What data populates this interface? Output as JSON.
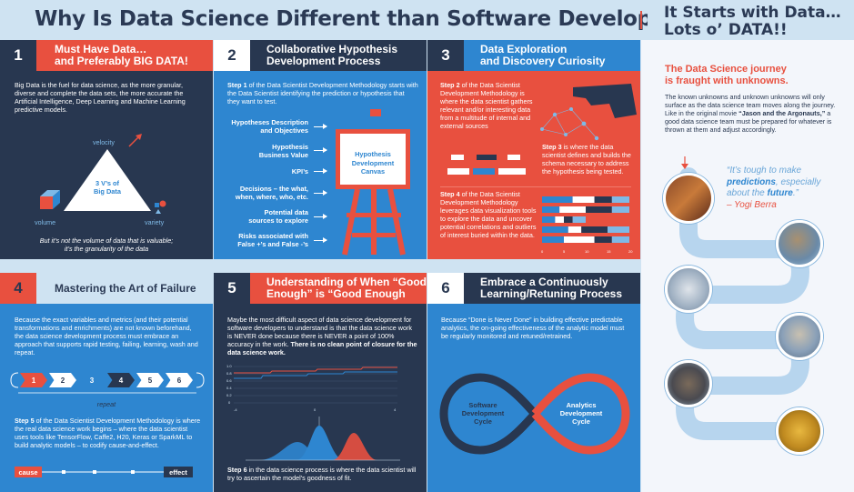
{
  "title": "Why Is Data Science Different than Software Development?",
  "right_title": [
    "It Starts with Data…",
    "Lots o’ DATA!!"
  ],
  "colors": {
    "navy": "#283750",
    "blue": "#2e86d0",
    "red": "#e8503f",
    "light": "#cfe3f2"
  },
  "p1": {
    "num": "1",
    "heading": [
      "Must Have Data…",
      "and Preferably BIG DATA!"
    ],
    "body": "Big Data is the fuel for data science, as the more granular, diverse and complete the data sets, the more accurate the Artificial Intelligence, Deep Learning and Machine Learning predictive models.",
    "velocity": "velocity",
    "volume": "volume",
    "variety": "variety",
    "triangle": [
      "3 V’s of",
      "Big Data"
    ],
    "caption": [
      "But it’s not the volume of data that is valuable;",
      "it’s the granularity of the data"
    ]
  },
  "p2": {
    "num": "2",
    "heading": [
      "Collaborative Hypothesis",
      "Development Process"
    ],
    "intro_bold": "Step 1",
    "intro": " of the Data Scientist Development Methodology starts with the Data Scientist identifying the prediction or hypothesis that they want to test.",
    "items": [
      [
        "Hypotheses Description",
        "and Objectives"
      ],
      [
        "Hypothesis",
        "Business Value"
      ],
      [
        "KPI’s"
      ],
      [
        "Decisions – the what,",
        "when, where, who, etc."
      ],
      [
        "Potential data",
        "sources to explore"
      ],
      [
        "Risks associated with",
        "False +’s and False -’s"
      ]
    ],
    "canvas": [
      "Hypothesis",
      "Development",
      "Canvas"
    ]
  },
  "p3": {
    "num": "3",
    "heading": [
      "Data Exploration",
      "and Discovery Curiosity"
    ],
    "s2_bold": "Step 2",
    "s2": " of the Data Scientist Development Methodology is where the data scientist gathers relevant and/or interesting data from a multitude of internal and external sources",
    "s3_bold": "Step 3",
    "s3": " is where the data scientist defines and builds the schema necessary to address the hypothesis being tested.",
    "s4_bold": "Step 4",
    "s4": " of the Data Scientist Development Methodology leverages data visualization tools to explore the data and uncover potential correlations and outliers of interest buried within the data.",
    "axis": [
      "0",
      "5",
      "10",
      "15",
      "20"
    ],
    "bars": [
      [
        0.35,
        0.25,
        0.2,
        0.2
      ],
      [
        0.2,
        0.3,
        0.3,
        0.2
      ],
      [
        0.15,
        0.1,
        0.1,
        0.15
      ],
      [
        0.3,
        0.15,
        0.3,
        0.25
      ],
      [
        0.25,
        0.35,
        0.2,
        0.2
      ]
    ]
  },
  "p4": {
    "num": "4",
    "heading": "Mastering the Art of Failure",
    "body": "Because the exact variables and metrics (and their potential transformations and enrichments) are not known beforehand, the data science development process must embrace an approach that supports rapid testing, failing, learning, wash and repeat.",
    "steps": [
      "1",
      "2",
      "3",
      "4",
      "5",
      "6"
    ],
    "repeat": "repeat",
    "s5_bold": "Step 5",
    "s5": " of the Data Scientist Development Methodology is where the real data science work begins – where the data scientist uses tools like TensorFlow, Caffe2, H20, Keras or SparkML to build analytic models – to codify cause-and-effect.",
    "cause": "cause",
    "effect": "effect"
  },
  "p5": {
    "num": "5",
    "heading": [
      "Understanding of When “Good",
      "Enough” is “Good Enough"
    ],
    "body": "Maybe the most difficult aspect of data science development for software developers to understand is that the data science work is NEVER done because there is NEVER a point of 100% accuracy in the work. ",
    "body_bold": "There is no clean point of closure for the data science work.",
    "yticks": [
      "1.0",
      "0.8",
      "0.6",
      "0.4",
      "0.2",
      "0"
    ],
    "xticks": [
      "-4",
      "0",
      "4"
    ],
    "s6_bold": "Step 6",
    "s6": " in the data science process is where the data scientist will try to ascertain the model’s goodness of fit."
  },
  "p6": {
    "num": "6",
    "heading": [
      "Embrace a Continuously",
      "Learning/Retuning Process"
    ],
    "body": "Because “Done is Never Done” in building effective predictable analytics, the on-going effectiveness of the analytic model must be regularly monitored and retuned/retrained.",
    "left_loop": [
      "Software",
      "Development",
      "Cycle"
    ],
    "right_loop": [
      "Analytics",
      "Development",
      "Cycle"
    ]
  },
  "right": {
    "heading": [
      "The Data Science journey",
      "is fraught with unknowns."
    ],
    "body_pre": "The known unknowns and unknown unknowns will only surface as the data science team moves along the journey. Like in the original movie ",
    "body_bold": "“Jason and the Argonauts,”",
    "body_post": " a good data science team must be prepared for whatever is thrown at them and adjust accordingly.",
    "quote_pre": "“It’s tough to make ",
    "quote_b1": "predictions",
    "quote_mid": ", especially about the ",
    "quote_b2": "future",
    "quote_end": ".”",
    "author": "– Yogi Berra"
  }
}
